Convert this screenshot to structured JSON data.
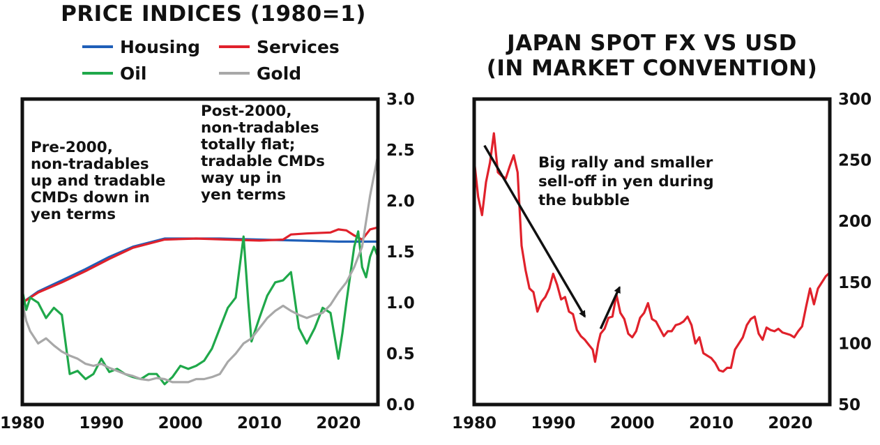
{
  "chart_data": [
    {
      "type": "line",
      "title": "PRICE INDICES (1980=1)",
      "legend_placement": "top",
      "xlim": [
        1980,
        2025
      ],
      "ylim": [
        0,
        3
      ],
      "x_ticks": [
        "1980",
        "1990",
        "2000",
        "2010",
        "2020"
      ],
      "y_ticks": [
        "0.0",
        "0.5",
        "1.0",
        "1.5",
        "2.0",
        "2.5",
        "3.0"
      ],
      "y_axis_side": "right",
      "grid": false,
      "annotations": [
        [
          "Pre-2000,",
          "non-tradables",
          "up and tradable",
          "CMDs down in",
          "yen terms"
        ],
        [
          "Post-2000,",
          "non-tradables",
          "totally flat;",
          "tradable CMDs",
          "way up in",
          "yen terms"
        ]
      ],
      "series": [
        {
          "name": "Housing",
          "color": "#1f5fb8",
          "points": [
            [
              1980,
              1.0
            ],
            [
              1982,
              1.11
            ],
            [
              1985,
              1.22
            ],
            [
              1988,
              1.33
            ],
            [
              1991,
              1.45
            ],
            [
              1994,
              1.55
            ],
            [
              1998,
              1.63
            ],
            [
              2002,
              1.63
            ],
            [
              2005,
              1.63
            ],
            [
              2010,
              1.62
            ],
            [
              2015,
              1.61
            ],
            [
              2020,
              1.6
            ],
            [
              2025,
              1.6
            ]
          ]
        },
        {
          "name": "Services",
          "color": "#e0212b",
          "points": [
            [
              1980,
              1.0
            ],
            [
              1982,
              1.1
            ],
            [
              1985,
              1.2
            ],
            [
              1988,
              1.31
            ],
            [
              1991,
              1.43
            ],
            [
              1994,
              1.54
            ],
            [
              1998,
              1.62
            ],
            [
              2002,
              1.63
            ],
            [
              2006,
              1.62
            ],
            [
              2010,
              1.61
            ],
            [
              2013,
              1.62
            ],
            [
              2014,
              1.67
            ],
            [
              2016,
              1.68
            ],
            [
              2019,
              1.69
            ],
            [
              2020,
              1.72
            ],
            [
              2021,
              1.71
            ],
            [
              2022,
              1.66
            ],
            [
              2023,
              1.62
            ],
            [
              2024,
              1.72
            ],
            [
              2025,
              1.74
            ]
          ]
        },
        {
          "name": "Oil",
          "color": "#1fa84a",
          "points": [
            [
              1980,
              1.12
            ],
            [
              1980.5,
              0.93
            ],
            [
              1981,
              1.05
            ],
            [
              1982,
              1.0
            ],
            [
              1983,
              0.85
            ],
            [
              1984,
              0.95
            ],
            [
              1985,
              0.88
            ],
            [
              1986,
              0.3
            ],
            [
              1987,
              0.33
            ],
            [
              1988,
              0.25
            ],
            [
              1989,
              0.3
            ],
            [
              1990,
              0.45
            ],
            [
              1991,
              0.32
            ],
            [
              1992,
              0.35
            ],
            [
              1993,
              0.3
            ],
            [
              1994,
              0.27
            ],
            [
              1995,
              0.25
            ],
            [
              1996,
              0.3
            ],
            [
              1997,
              0.3
            ],
            [
              1998,
              0.2
            ],
            [
              1999,
              0.27
            ],
            [
              2000,
              0.38
            ],
            [
              2001,
              0.35
            ],
            [
              2002,
              0.38
            ],
            [
              2003,
              0.43
            ],
            [
              2004,
              0.55
            ],
            [
              2005,
              0.75
            ],
            [
              2006,
              0.95
            ],
            [
              2007,
              1.05
            ],
            [
              2008,
              1.65
            ],
            [
              2008.6,
              1.0
            ],
            [
              2009,
              0.62
            ],
            [
              2010,
              0.85
            ],
            [
              2011,
              1.07
            ],
            [
              2012,
              1.2
            ],
            [
              2013,
              1.22
            ],
            [
              2014,
              1.3
            ],
            [
              2015,
              0.75
            ],
            [
              2016,
              0.6
            ],
            [
              2017,
              0.75
            ],
            [
              2018,
              0.95
            ],
            [
              2019,
              0.9
            ],
            [
              2020,
              0.45
            ],
            [
              2020.5,
              0.7
            ],
            [
              2021,
              1.0
            ],
            [
              2022,
              1.55
            ],
            [
              2022.5,
              1.7
            ],
            [
              2023,
              1.35
            ],
            [
              2023.5,
              1.25
            ],
            [
              2024,
              1.45
            ],
            [
              2024.5,
              1.55
            ],
            [
              2025,
              1.45
            ]
          ]
        },
        {
          "name": "Gold",
          "color": "#a8a8a8",
          "points": [
            [
              1980,
              1.0
            ],
            [
              1980.5,
              0.82
            ],
            [
              1981,
              0.72
            ],
            [
              1982,
              0.6
            ],
            [
              1983,
              0.65
            ],
            [
              1984,
              0.58
            ],
            [
              1985,
              0.52
            ],
            [
              1986,
              0.48
            ],
            [
              1987,
              0.45
            ],
            [
              1988,
              0.4
            ],
            [
              1989,
              0.38
            ],
            [
              1990,
              0.4
            ],
            [
              1991,
              0.36
            ],
            [
              1992,
              0.33
            ],
            [
              1993,
              0.3
            ],
            [
              1994,
              0.28
            ],
            [
              1995,
              0.25
            ],
            [
              1996,
              0.24
            ],
            [
              1997,
              0.26
            ],
            [
              1998,
              0.25
            ],
            [
              1999,
              0.22
            ],
            [
              2000,
              0.22
            ],
            [
              2001,
              0.22
            ],
            [
              2002,
              0.25
            ],
            [
              2003,
              0.25
            ],
            [
              2004,
              0.27
            ],
            [
              2005,
              0.3
            ],
            [
              2006,
              0.42
            ],
            [
              2007,
              0.5
            ],
            [
              2008,
              0.6
            ],
            [
              2009,
              0.65
            ],
            [
              2010,
              0.75
            ],
            [
              2011,
              0.85
            ],
            [
              2012,
              0.92
            ],
            [
              2013,
              0.97
            ],
            [
              2014,
              0.92
            ],
            [
              2015,
              0.88
            ],
            [
              2016,
              0.85
            ],
            [
              2017,
              0.88
            ],
            [
              2018,
              0.9
            ],
            [
              2019,
              0.98
            ],
            [
              2020,
              1.1
            ],
            [
              2021,
              1.2
            ],
            [
              2022,
              1.35
            ],
            [
              2023,
              1.55
            ],
            [
              2024,
              2.05
            ],
            [
              2025,
              2.45
            ]
          ]
        }
      ]
    },
    {
      "type": "line",
      "title": "JAPAN SPOT FX VS USD (IN MARKET CONVENTION)",
      "title_lines": [
        "JAPAN SPOT FX VS USD",
        "(IN MARKET CONVENTION)"
      ],
      "xlim": [
        1980,
        2025
      ],
      "ylim": [
        50,
        300
      ],
      "x_ticks": [
        "1980",
        "1990",
        "2000",
        "2010",
        "2020"
      ],
      "y_ticks": [
        "50",
        "100",
        "150",
        "200",
        "250",
        "300"
      ],
      "y_axis_side": "right",
      "grid": false,
      "annotation": [
        "Big rally and smaller",
        "sell-off in yen during",
        "the bubble"
      ],
      "arrows": [
        {
          "from": [
            1981.3,
            262
          ],
          "to": [
            1994,
            122
          ]
        },
        {
          "from": [
            1996,
            112
          ],
          "to": [
            1998.4,
            146
          ]
        }
      ],
      "series": [
        {
          "name": "",
          "color": "#e0212b",
          "points": [
            [
              1980,
              250
            ],
            [
              1980.5,
              220
            ],
            [
              1981,
              205
            ],
            [
              1981.5,
              232
            ],
            [
              1982,
              248
            ],
            [
              1982.5,
              272
            ],
            [
              1983,
              240
            ],
            [
              1983.5,
              237
            ],
            [
              1984,
              235
            ],
            [
              1984.5,
              245
            ],
            [
              1985,
              254
            ],
            [
              1985.5,
              240
            ],
            [
              1986,
              180
            ],
            [
              1986.5,
              160
            ],
            [
              1987,
              145
            ],
            [
              1987.5,
              142
            ],
            [
              1988,
              126
            ],
            [
              1988.5,
              134
            ],
            [
              1989,
              138
            ],
            [
              1989.5,
              145
            ],
            [
              1990,
              157
            ],
            [
              1990.5,
              148
            ],
            [
              1991,
              136
            ],
            [
              1991.5,
              138
            ],
            [
              1992,
              126
            ],
            [
              1992.5,
              124
            ],
            [
              1993,
              111
            ],
            [
              1993.5,
              106
            ],
            [
              1994,
              103
            ],
            [
              1994.5,
              99
            ],
            [
              1995,
              95
            ],
            [
              1995.3,
              85
            ],
            [
              1995.7,
              100
            ],
            [
              1996,
              108
            ],
            [
              1996.5,
              112
            ],
            [
              1997,
              121
            ],
            [
              1997.5,
              122
            ],
            [
              1998,
              140
            ],
            [
              1998.5,
              125
            ],
            [
              1999,
              120
            ],
            [
              1999.5,
              108
            ],
            [
              2000,
              105
            ],
            [
              2000.5,
              110
            ],
            [
              2001,
              121
            ],
            [
              2001.5,
              125
            ],
            [
              2002,
              133
            ],
            [
              2002.5,
              120
            ],
            [
              2003,
              118
            ],
            [
              2003.5,
              112
            ],
            [
              2004,
              106
            ],
            [
              2004.5,
              110
            ],
            [
              2005,
              110
            ],
            [
              2005.5,
              115
            ],
            [
              2006,
              116
            ],
            [
              2006.5,
              118
            ],
            [
              2007,
              122
            ],
            [
              2007.5,
              115
            ],
            [
              2008,
              100
            ],
            [
              2008.5,
              105
            ],
            [
              2009,
              92
            ],
            [
              2009.5,
              90
            ],
            [
              2010,
              88
            ],
            [
              2010.5,
              84
            ],
            [
              2011,
              78
            ],
            [
              2011.5,
              77
            ],
            [
              2012,
              80
            ],
            [
              2012.5,
              80
            ],
            [
              2013,
              95
            ],
            [
              2013.5,
              100
            ],
            [
              2014,
              105
            ],
            [
              2014.5,
              115
            ],
            [
              2015,
              120
            ],
            [
              2015.5,
              122
            ],
            [
              2016,
              108
            ],
            [
              2016.5,
              103
            ],
            [
              2017,
              113
            ],
            [
              2017.5,
              111
            ],
            [
              2018,
              110
            ],
            [
              2018.5,
              112
            ],
            [
              2019,
              109
            ],
            [
              2019.5,
              108
            ],
            [
              2020,
              107
            ],
            [
              2020.5,
              105
            ],
            [
              2021,
              110
            ],
            [
              2021.5,
              114
            ],
            [
              2022,
              130
            ],
            [
              2022.5,
              145
            ],
            [
              2023,
              132
            ],
            [
              2023.5,
              145
            ],
            [
              2024,
              150
            ],
            [
              2024.5,
              155
            ],
            [
              2025,
              158
            ]
          ]
        }
      ]
    }
  ]
}
